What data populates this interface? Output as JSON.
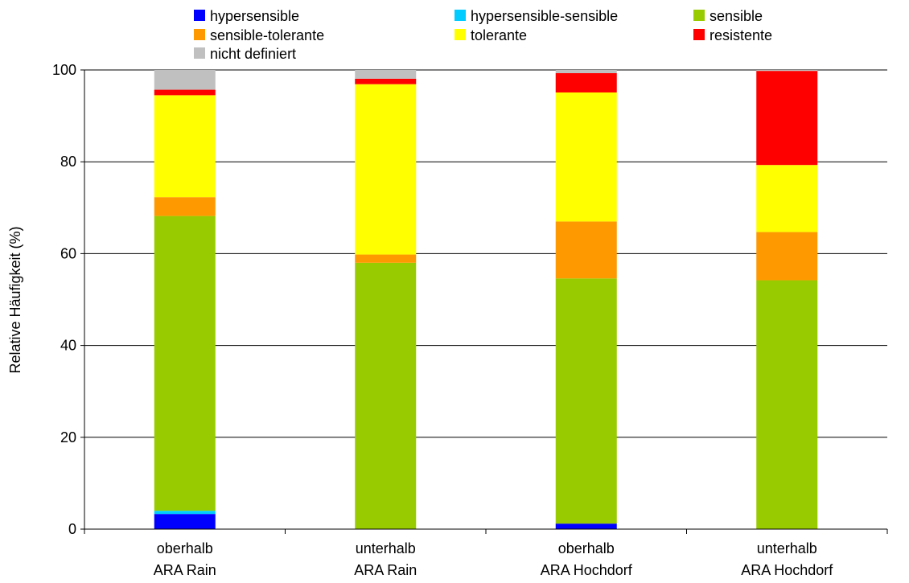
{
  "chart_data": {
    "type": "bar",
    "stacked": true,
    "title": "",
    "xlabel": "",
    "ylabel": "Relative Häufigkeit (%)",
    "ylim": [
      0,
      100
    ],
    "yticks": [
      0,
      20,
      40,
      60,
      80,
      100
    ],
    "grid": "horizontal",
    "legend_position": "top",
    "categories": [
      [
        "oberhalb",
        "ARA Rain"
      ],
      [
        "unterhalb",
        "ARA Rain"
      ],
      [
        "oberhalb",
        "ARA Hochdorf"
      ],
      [
        "unterhalb",
        "ARA Hochdorf"
      ]
    ],
    "series": [
      {
        "name": "hypersensible",
        "color": "#0000FF",
        "values": [
          3.3,
          0.0,
          1.2,
          0.0
        ]
      },
      {
        "name": "hypersensible-sensible",
        "color": "#00CCFF",
        "values": [
          0.7,
          0.0,
          0.0,
          0.0
        ]
      },
      {
        "name": "sensible",
        "color": "#99CC00",
        "values": [
          64.2,
          58.0,
          53.4,
          54.2
        ]
      },
      {
        "name": "sensible-tolerante",
        "color": "#FF9900",
        "values": [
          4.1,
          1.8,
          12.4,
          10.5
        ]
      },
      {
        "name": "tolerante",
        "color": "#FFFF00",
        "values": [
          22.2,
          37.1,
          28.1,
          14.6
        ]
      },
      {
        "name": "resistente",
        "color": "#FF0000",
        "values": [
          1.2,
          1.2,
          4.2,
          20.5
        ]
      },
      {
        "name": "nicht definiert",
        "color": "#C0C0C0",
        "values": [
          4.3,
          1.9,
          0.7,
          0.2
        ]
      }
    ]
  }
}
